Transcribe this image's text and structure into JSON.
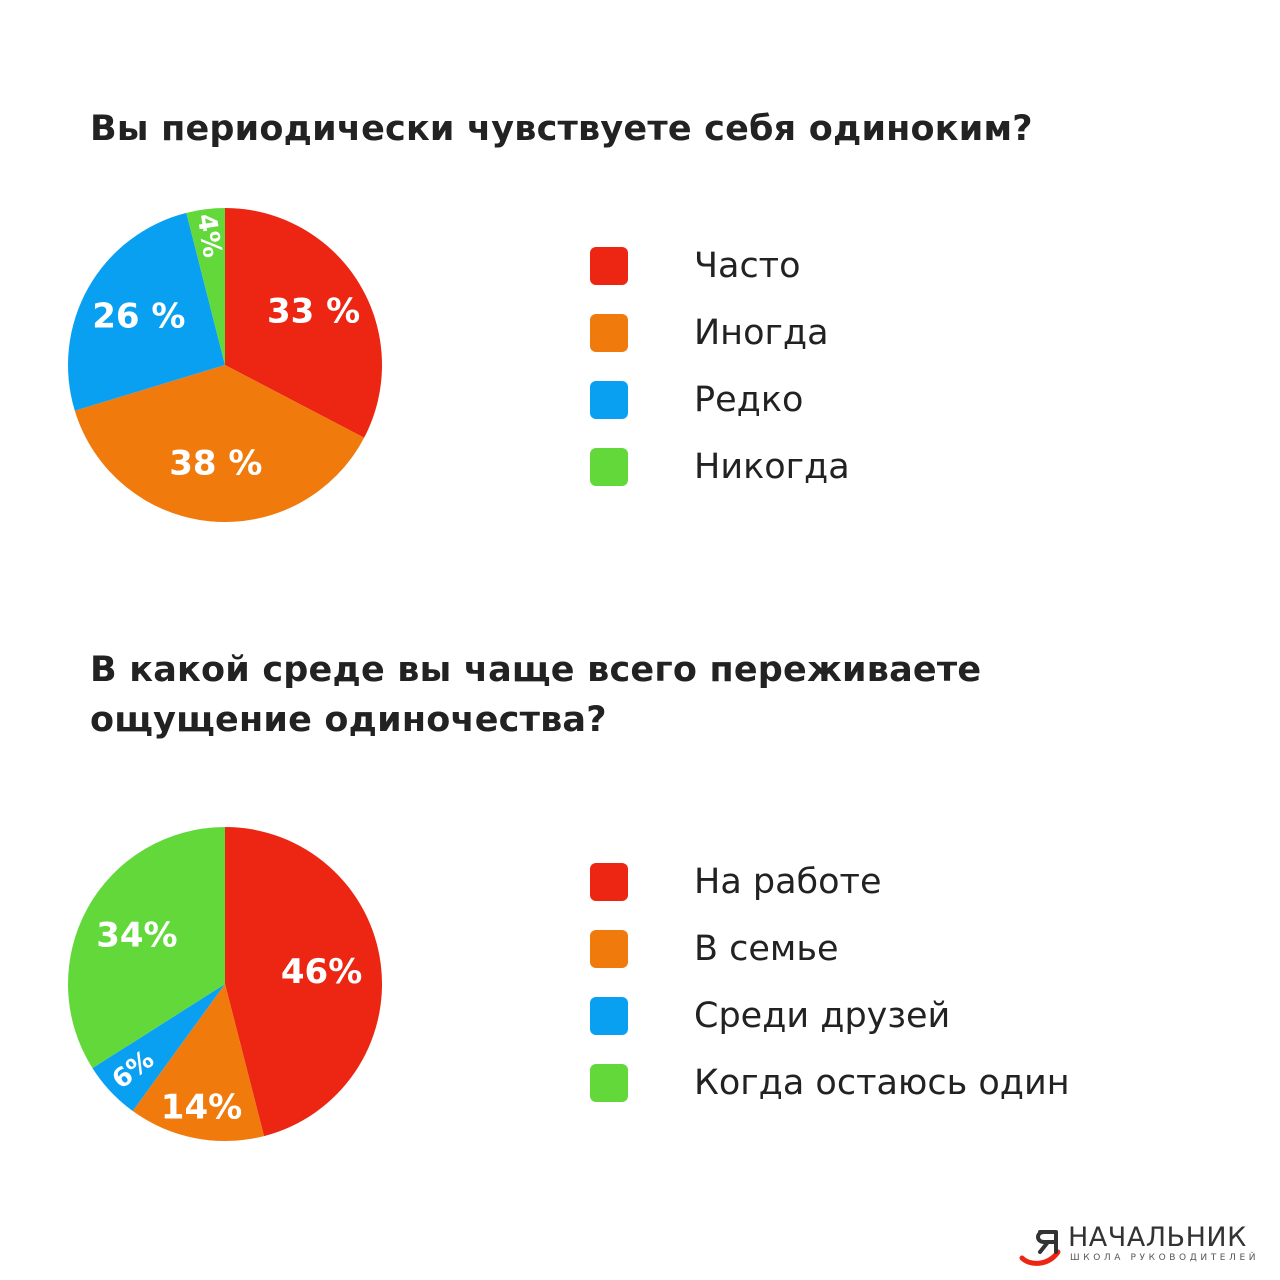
{
  "colors": {
    "red": "#ec2613",
    "orange": "#f07b0c",
    "blue": "#0aa0f2",
    "green": "#63d83b",
    "text": "#222222"
  },
  "chart_data": [
    {
      "type": "pie",
      "title": "Вы периодически чувствуете себя одиноким?",
      "slices": [
        {
          "name": "Часто",
          "value": 33,
          "label": "33 %",
          "color": "#ec2613"
        },
        {
          "name": "Иногда",
          "value": 38,
          "label": "38 %",
          "color": "#f07b0c"
        },
        {
          "name": "Редко",
          "value": 26,
          "label": "26 %",
          "color": "#0aa0f2"
        },
        {
          "name": "Никогда",
          "value": 4,
          "label": "4%",
          "color": "#63d83b"
        }
      ],
      "legend_position": "right"
    },
    {
      "type": "pie",
      "title": "В какой среде вы чаще всего переживаете ощущение одиночества?",
      "slices": [
        {
          "name": "На работе",
          "value": 46,
          "label": "46%",
          "color": "#ec2613"
        },
        {
          "name": "В семье",
          "value": 14,
          "label": "14%",
          "color": "#f07b0c"
        },
        {
          "name": "Среди друзей",
          "value": 6,
          "label": "6%",
          "color": "#0aa0f2"
        },
        {
          "name": "Когда остаюсь один",
          "value": 34,
          "label": "34%",
          "color": "#63d83b"
        }
      ],
      "legend_position": "right"
    }
  ],
  "logo": {
    "name": "НАЧАЛЬНИК",
    "subtitle": "ШКОЛА РУКОВОДИТЕЛЕЙ",
    "icon": "logo-mark-icon"
  }
}
